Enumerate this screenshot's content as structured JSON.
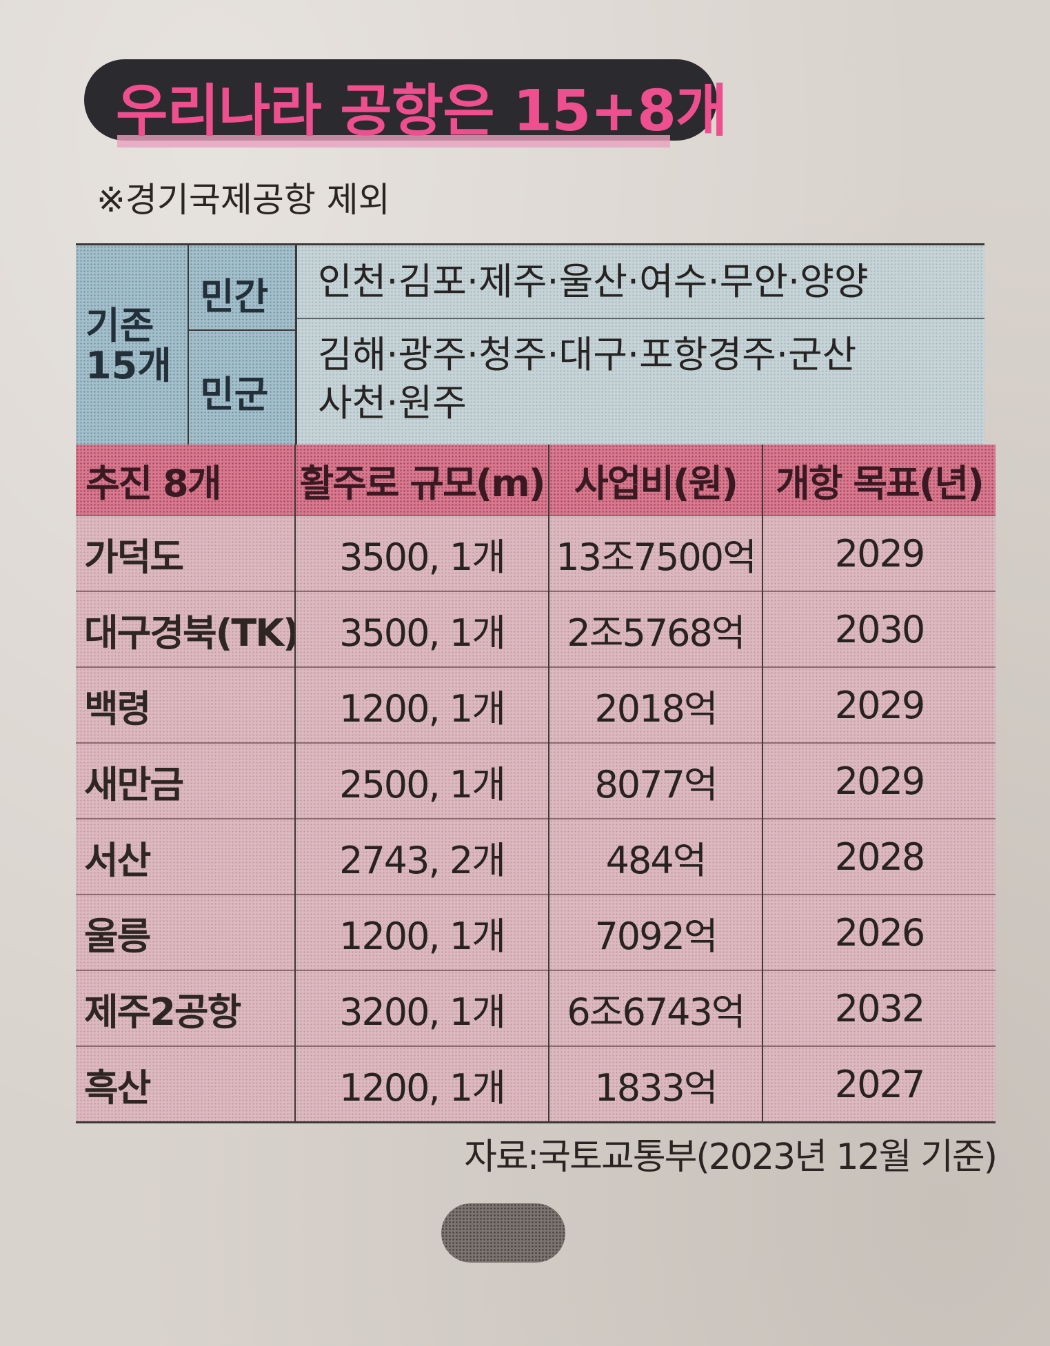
{
  "title": "우리나라 공항은 15+8개",
  "note": "※경기국제공항 제외",
  "existing": {
    "group_label": "기존 15개",
    "rows": [
      {
        "type": "민간",
        "lines": [
          "인천·김포·제주·울산·여수·무안·양양"
        ]
      },
      {
        "type": "민군",
        "lines": [
          "김해·광주·청주·대구·포항경주·군산",
          "사천·원주"
        ]
      }
    ]
  },
  "planned": {
    "headers": [
      "추진 8개",
      "활주로 규모(m)",
      "사업비(원)",
      "개항 목표(년)"
    ],
    "rows": [
      [
        "가덕도",
        "3500, 1개",
        "13조7500억",
        "2029"
      ],
      [
        "대구경북(TK)",
        "3500, 1개",
        "2조5768억",
        "2030"
      ],
      [
        "백령",
        "1200, 1개",
        "2018억",
        "2029"
      ],
      [
        "새만금",
        "2500, 1개",
        "8077억",
        "2029"
      ],
      [
        "서산",
        "2743, 2개",
        "484억",
        "2028"
      ],
      [
        "울릉",
        "1200, 1개",
        "7092억",
        "2026"
      ],
      [
        "제주2공항",
        "3200, 1개",
        "6조6743억",
        "2032"
      ],
      [
        "흑산",
        "1200, 1개",
        "1833억",
        "2027"
      ]
    ]
  },
  "source": "자료:국토교통부(2023년 12월 기준)",
  "colors": {
    "title_text": "#ee4f8e",
    "title_bg": "#2b2a2e",
    "existing_header": "#a2bfcb",
    "planned_header": "#d9788f",
    "planned_body": "#dcb9c0"
  }
}
